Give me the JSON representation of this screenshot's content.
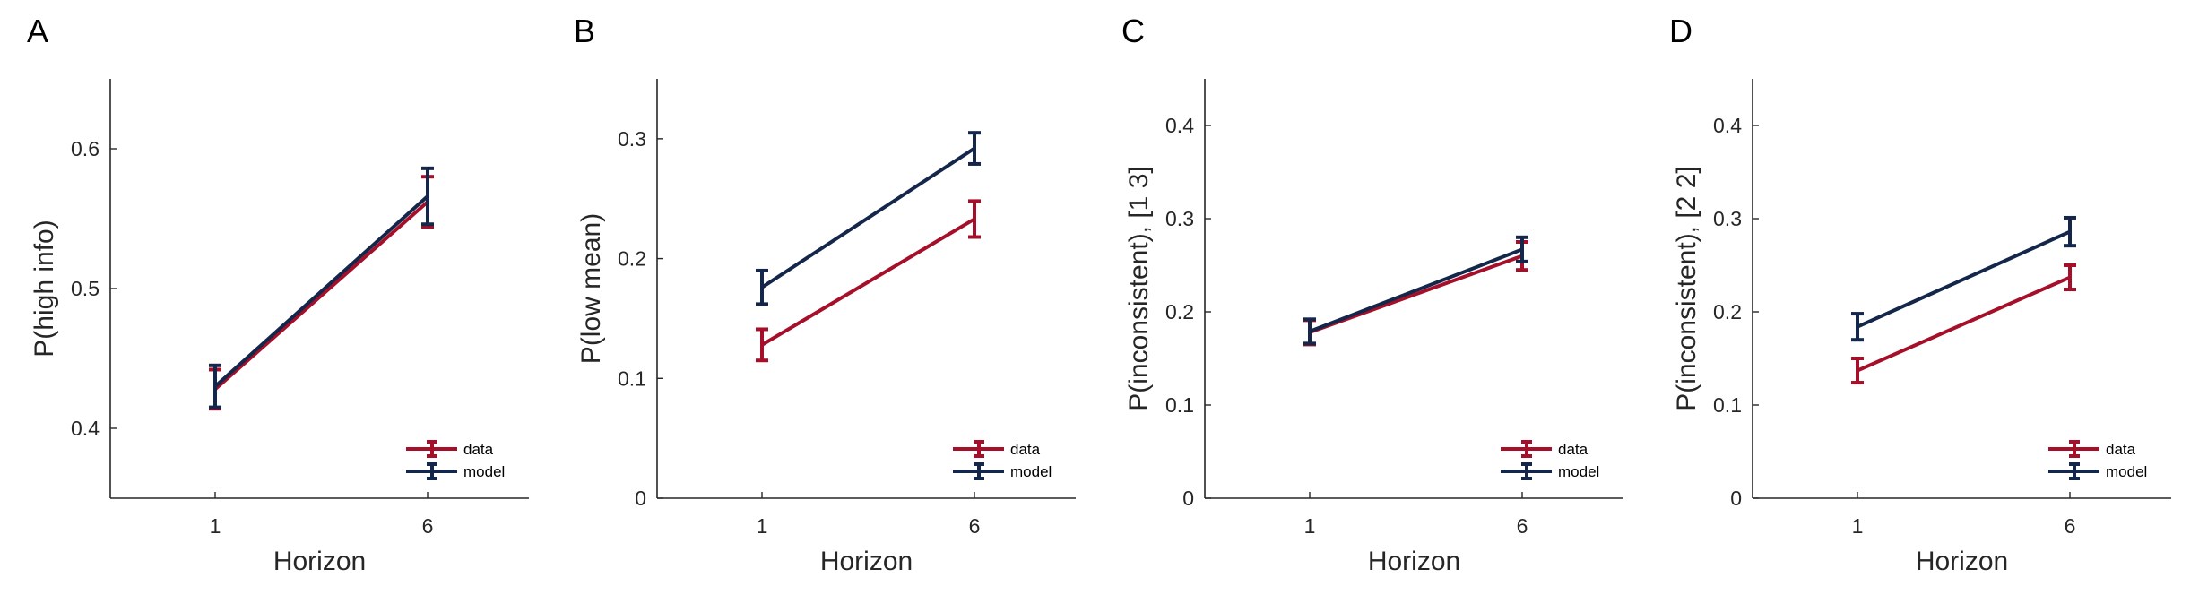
{
  "colors": {
    "data": "#a50f2a",
    "model": "#14274a",
    "axis": "#262626"
  },
  "chart_data": [
    {
      "panel_label": "A",
      "type": "line",
      "xlabel": "Horizon",
      "ylabel": "P(high info)",
      "x": [
        1,
        6
      ],
      "xticks": [
        "1",
        "6"
      ],
      "ylim": [
        0.35,
        0.65
      ],
      "yticks": [
        "0.4",
        "0.5",
        "0.6"
      ],
      "ytick_values": [
        0.4,
        0.5,
        0.6
      ],
      "grid": false,
      "legend": "bottom-right",
      "series": [
        {
          "name": "data",
          "values": [
            0.428,
            0.562
          ],
          "errors": [
            0.014,
            0.018
          ]
        },
        {
          "name": "model",
          "values": [
            0.43,
            0.566
          ],
          "errors": [
            0.015,
            0.02
          ]
        }
      ]
    },
    {
      "panel_label": "B",
      "type": "line",
      "xlabel": "Horizon",
      "ylabel": "P(low mean)",
      "x": [
        1,
        6
      ],
      "xticks": [
        "1",
        "6"
      ],
      "ylim": [
        0,
        0.35
      ],
      "yticks": [
        "0",
        "0.1",
        "0.2",
        "0.3"
      ],
      "ytick_values": [
        0,
        0.1,
        0.2,
        0.3
      ],
      "grid": false,
      "legend": "bottom-right",
      "series": [
        {
          "name": "data",
          "values": [
            0.128,
            0.233
          ],
          "errors": [
            0.013,
            0.015
          ]
        },
        {
          "name": "model",
          "values": [
            0.176,
            0.292
          ],
          "errors": [
            0.014,
            0.013
          ]
        }
      ]
    },
    {
      "panel_label": "C",
      "type": "line",
      "xlabel": "Horizon",
      "ylabel": "P(inconsistent), [1 3]",
      "x": [
        1,
        6
      ],
      "xticks": [
        "1",
        "6"
      ],
      "ylim": [
        0,
        0.45
      ],
      "yticks": [
        "0",
        "0.1",
        "0.2",
        "0.3",
        "0.4"
      ],
      "ytick_values": [
        0,
        0.1,
        0.2,
        0.3,
        0.4
      ],
      "grid": false,
      "legend": "bottom-right",
      "series": [
        {
          "name": "data",
          "values": [
            0.178,
            0.26
          ],
          "errors": [
            0.013,
            0.015
          ]
        },
        {
          "name": "model",
          "values": [
            0.179,
            0.267
          ],
          "errors": [
            0.013,
            0.013
          ]
        }
      ]
    },
    {
      "panel_label": "D",
      "type": "line",
      "xlabel": "Horizon",
      "ylabel": "P(inconsistent), [2 2]",
      "x": [
        1,
        6
      ],
      "xticks": [
        "1",
        "6"
      ],
      "ylim": [
        0,
        0.45
      ],
      "yticks": [
        "0",
        "0.1",
        "0.2",
        "0.3",
        "0.4"
      ],
      "ytick_values": [
        0,
        0.1,
        0.2,
        0.3,
        0.4
      ],
      "grid": false,
      "legend": "bottom-right",
      "series": [
        {
          "name": "data",
          "values": [
            0.137,
            0.237
          ],
          "errors": [
            0.013,
            0.013
          ]
        },
        {
          "name": "model",
          "values": [
            0.184,
            0.286
          ],
          "errors": [
            0.014,
            0.015
          ]
        }
      ]
    }
  ]
}
